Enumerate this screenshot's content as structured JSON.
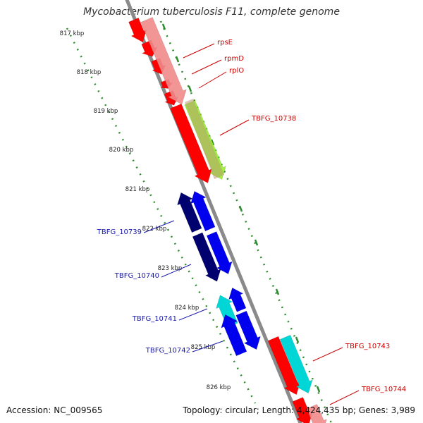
{
  "title": "Mycobacterium tuberculosis F11, complete genome",
  "footer": {
    "accession": "Accession: NC_009565",
    "summary": "Topology: circular; Length: 4,424,435 bp; Genes: 3,989"
  },
  "scale_ticks": [
    "817 kbp",
    "818 kbp",
    "819 kbp",
    "820 kbp",
    "821 kbp",
    "822 kbp",
    "823 kbp",
    "824 kbp",
    "825 kbp",
    "826 kbp"
  ],
  "gene_labels": [
    {
      "text": "rpsE",
      "color": "#cc0000"
    },
    {
      "text": "rpmD",
      "color": "#cc0000"
    },
    {
      "text": "rplO",
      "color": "#cc0000"
    },
    {
      "text": "TBFG_10738",
      "color": "#cc0000"
    },
    {
      "text": "TBFG_10739",
      "color": "#1a1aaa"
    },
    {
      "text": "TBFG_10740",
      "color": "#1a1aaa"
    },
    {
      "text": "TBFG_10741",
      "color": "#1a1aaa"
    },
    {
      "text": "TBFG_10742",
      "color": "#1a1aaa"
    },
    {
      "text": "TBFG_10743",
      "color": "#cc0000"
    },
    {
      "text": "TBFG_10744",
      "color": "#cc0000"
    }
  ],
  "colors": {
    "backbone": "#8a8a8a",
    "forward_gene": "#ff0000",
    "forward_gene_light": "#f08a8a",
    "reverse_gene_dark": "#00006e",
    "reverse_gene": "#0000ee",
    "cyan_gene": "#00d6d6",
    "green_gene": "#90ee20",
    "dotted_ring": "#2e8b2e",
    "label_red": "#cc0000",
    "label_blue": "#1a1aaa"
  }
}
